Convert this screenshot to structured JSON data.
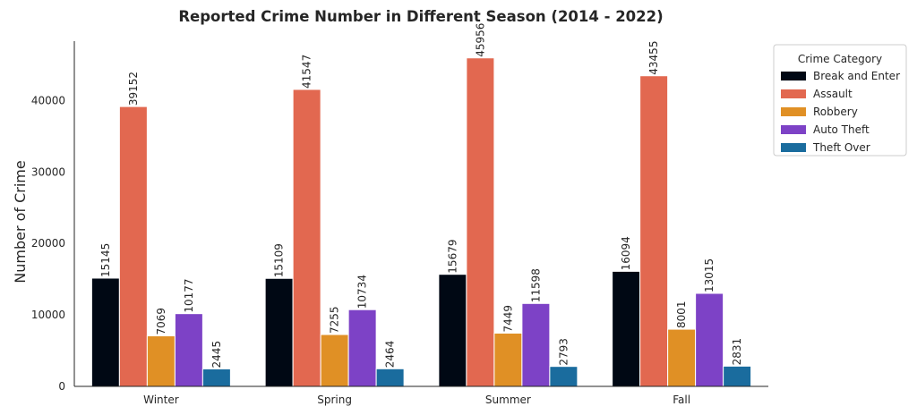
{
  "chart_data": {
    "type": "bar",
    "title": "Reported Crime Number in Different Season (2014 - 2022)",
    "xlabel": "",
    "ylabel": "Number of Crime",
    "categories": [
      "Winter",
      "Spring",
      "Summer",
      "Fall"
    ],
    "yticks": [
      0,
      10000,
      20000,
      30000,
      40000
    ],
    "ylim": [
      0,
      48300
    ],
    "grid": false,
    "legend": {
      "title": "Crime Category",
      "placement": "upper-right-outside"
    },
    "series": [
      {
        "name": "Break and Enter",
        "color": "#000814",
        "values": [
          15145,
          15109,
          15679,
          16094
        ]
      },
      {
        "name": "Assault",
        "color": "#E26850",
        "values": [
          39152,
          41547,
          45956,
          43455
        ]
      },
      {
        "name": "Robbery",
        "color": "#E09025",
        "values": [
          7069,
          7255,
          7449,
          8001
        ]
      },
      {
        "name": "Auto Theft",
        "color": "#7D42C6",
        "values": [
          10177,
          10734,
          11598,
          13015
        ]
      },
      {
        "name": "Theft Over",
        "color": "#1A6C9E",
        "values": [
          2445,
          2464,
          2793,
          2831
        ]
      }
    ]
  }
}
